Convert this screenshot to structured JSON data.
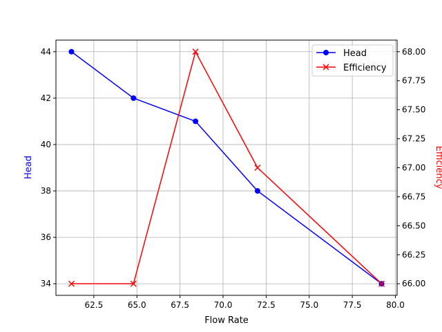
{
  "chart_data": {
    "type": "line",
    "xlabel": "Flow Rate",
    "ylabel_left": "Head",
    "ylabel_right": "Efficiency",
    "x": [
      61.2,
      64.8,
      68.4,
      72.0,
      79.2
    ],
    "xlim": [
      60.3,
      80.1
    ],
    "ylim_left": [
      33.5,
      44.5
    ],
    "ylim_right": [
      65.9,
      68.1
    ],
    "xticks": [
      "62.5",
      "65.0",
      "67.5",
      "70.0",
      "72.5",
      "75.0",
      "77.5",
      "80.0"
    ],
    "yticks_left": [
      "34",
      "36",
      "38",
      "40",
      "42",
      "44"
    ],
    "yticks_right": [
      "66.00",
      "66.25",
      "66.50",
      "66.75",
      "67.00",
      "67.25",
      "67.50",
      "67.75",
      "68.00"
    ],
    "grid": true,
    "legend_position": "upper-right",
    "series": [
      {
        "name": "Head",
        "axis": "left",
        "values": [
          44,
          42,
          41,
          38,
          34
        ],
        "color": "#0000ff",
        "marker": "circle"
      },
      {
        "name": "Efficiency",
        "axis": "right",
        "values": [
          66,
          66,
          68,
          67,
          66
        ],
        "color": "#ff0000",
        "marker": "x"
      }
    ]
  }
}
